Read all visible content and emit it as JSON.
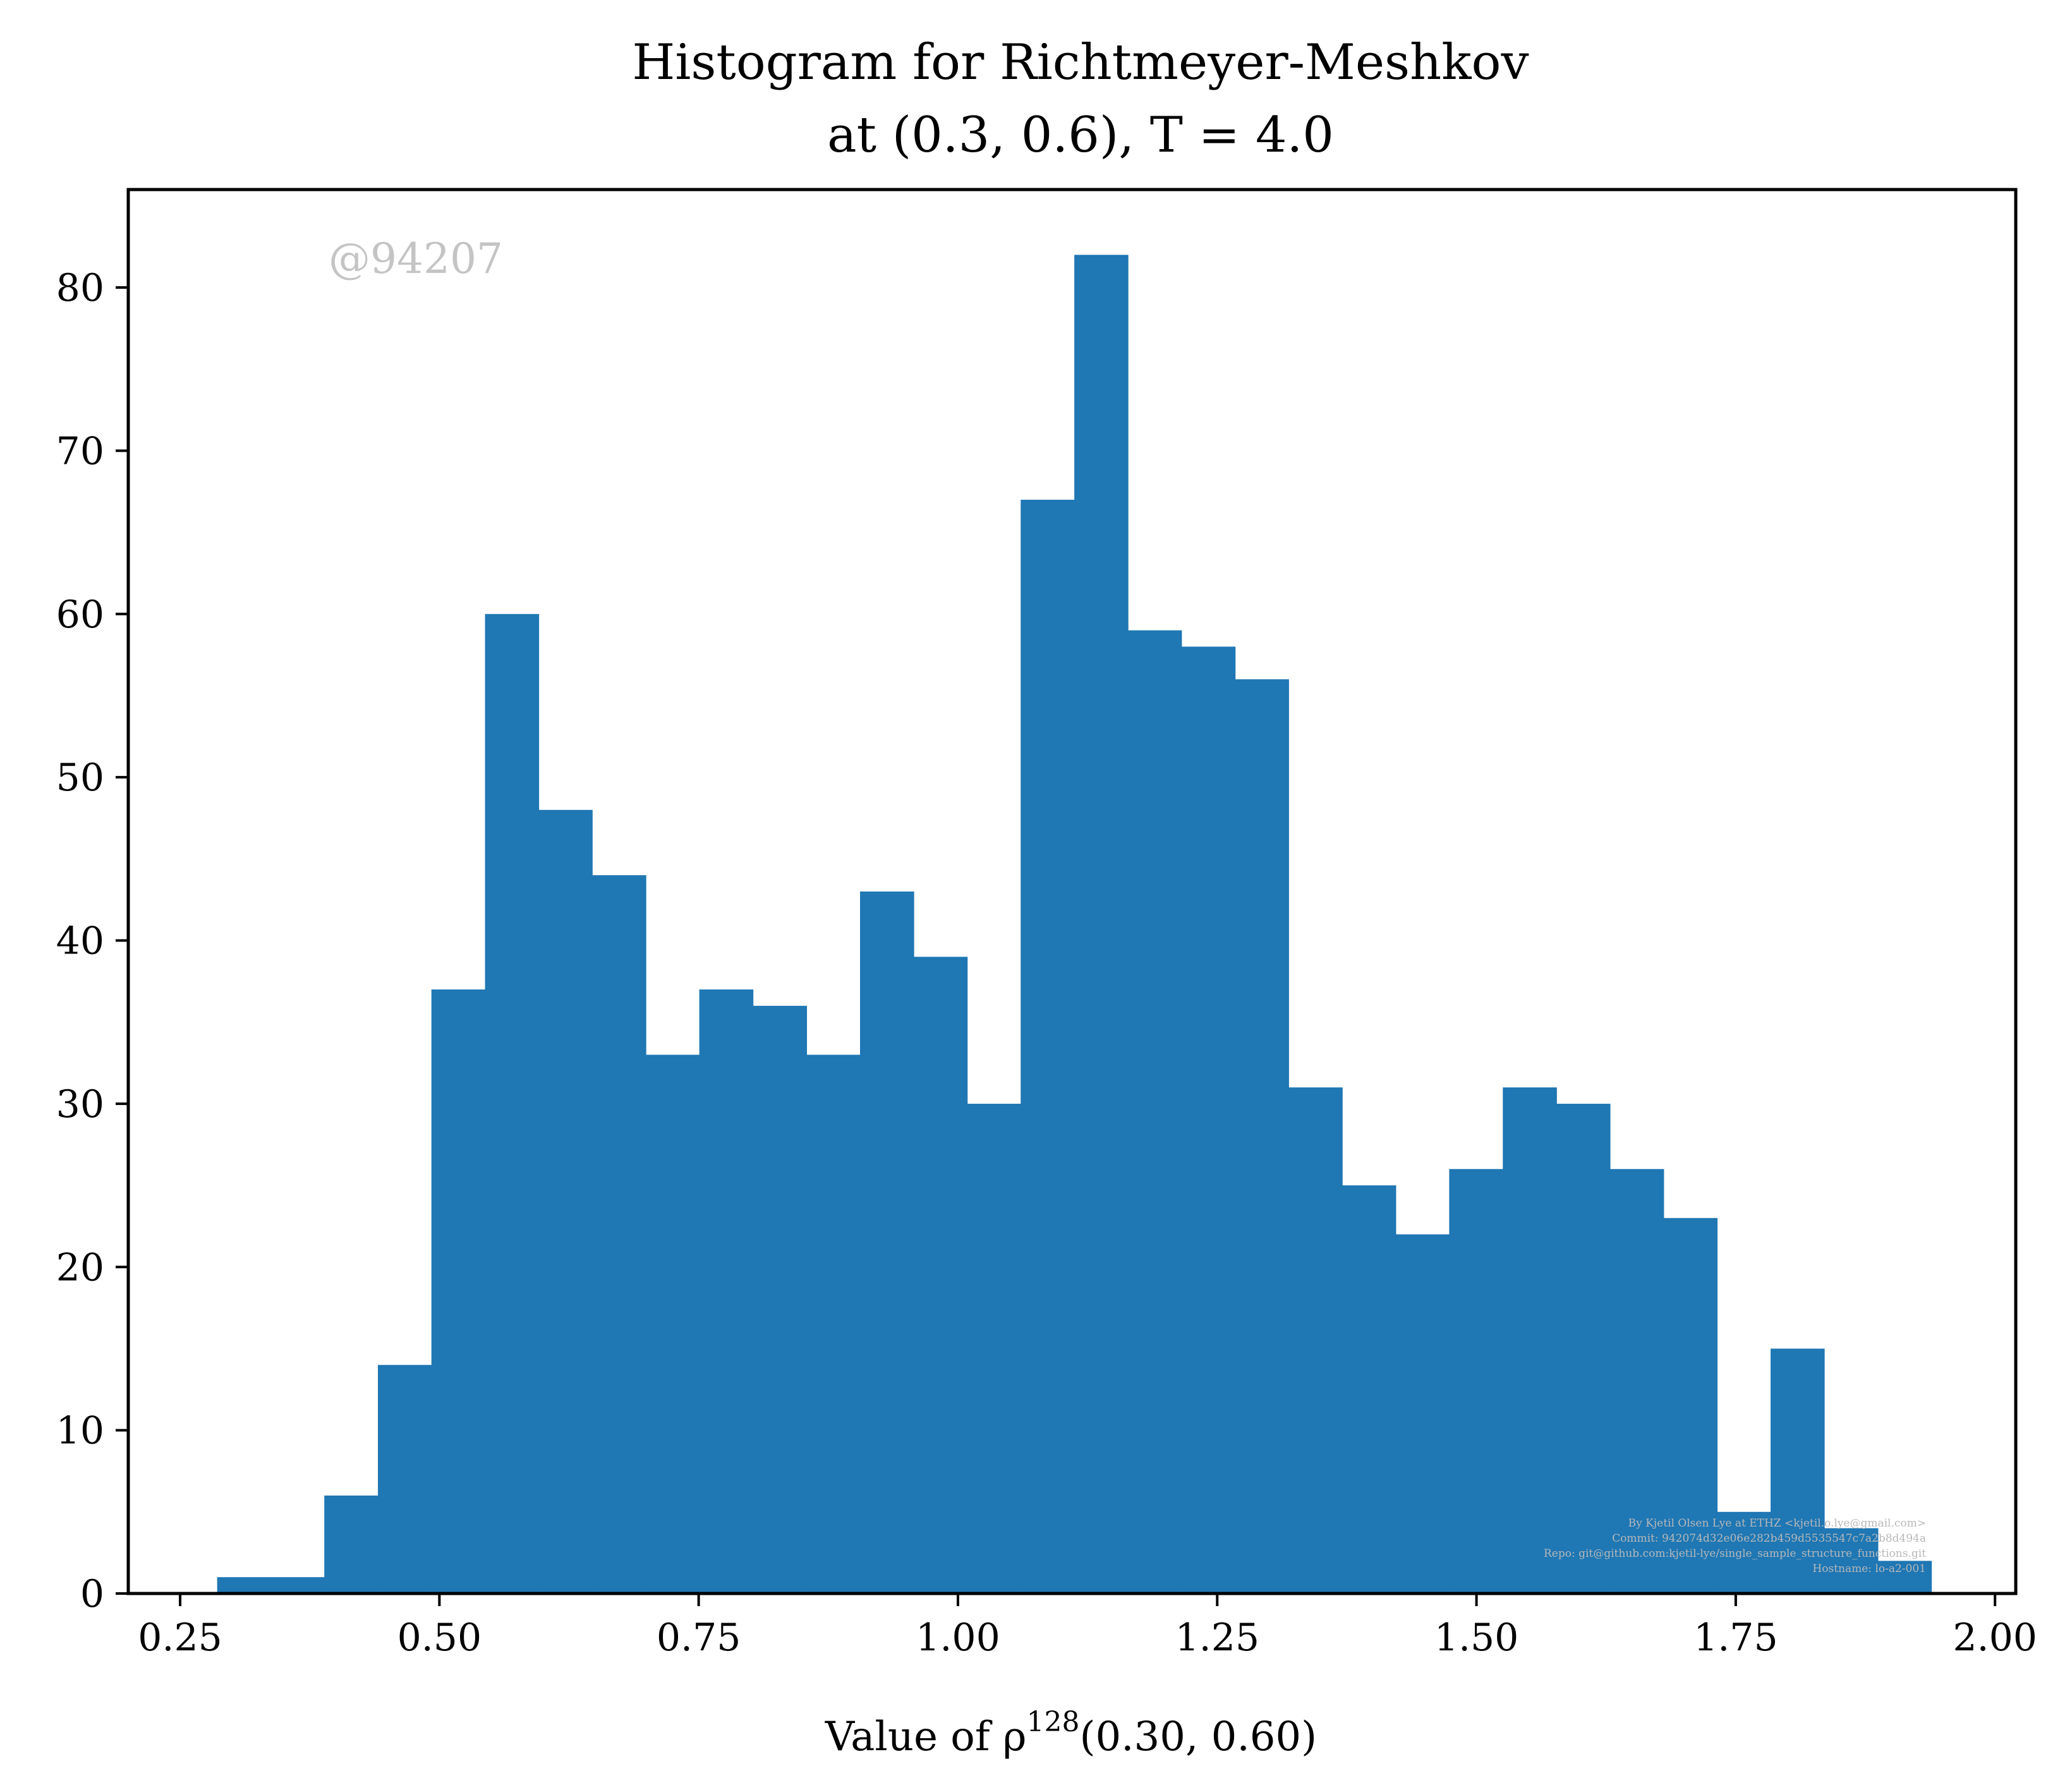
{
  "chart_data": {
    "type": "bar",
    "title_line1": "Histogram for Richtmeyer-Meshkov",
    "title_line2": "at (0.3, 0.6), T = 4.0",
    "xlabel_prefix": "Value of ρ",
    "xlabel_sup": "128",
    "xlabel_suffix": "(0.30, 0.60)",
    "ylabel": "",
    "xlim": [
      0.2,
      2.02
    ],
    "ylim": [
      0,
      86
    ],
    "xticks": [
      "0.25",
      "0.50",
      "0.75",
      "1.00",
      "1.25",
      "1.50",
      "1.75",
      "2.00"
    ],
    "yticks": [
      "0",
      "10",
      "20",
      "30",
      "40",
      "50",
      "60",
      "70",
      "80"
    ],
    "bin_start": 0.2857,
    "bin_width": 0.05165,
    "bins": [
      0.2857,
      0.3374,
      0.389,
      0.4407,
      0.4923,
      0.544,
      0.5956,
      0.6473,
      0.699,
      0.7506,
      0.8023,
      0.8539,
      0.9056,
      0.9572,
      1.0089,
      1.0605,
      1.1122,
      1.1638,
      1.2155,
      1.2671,
      1.3188,
      1.3704,
      1.4221,
      1.4737,
      1.5254,
      1.577,
      1.6287,
      1.6803,
      1.732,
      1.7836,
      1.8353,
      1.8869
    ],
    "values": [
      1,
      1,
      6,
      14,
      37,
      60,
      48,
      44,
      33,
      37,
      36,
      33,
      43,
      39,
      30,
      67,
      82,
      59,
      58,
      56,
      31,
      25,
      22,
      26,
      31,
      30,
      26,
      23,
      5,
      15,
      4,
      2
    ],
    "bar_color": "#1f77b4",
    "grid": false,
    "watermark": "@94207",
    "footer_lines": [
      "By Kjetil Olsen Lye at ETHZ <kjetil.o.lye@gmail.com>",
      "Commit: 942074d32e06e282b459d5535547c7a2b8d494a",
      "Repo: git@github.com:kjetil-lye/single_sample_structure_functions.git",
      "Hostname: lo-a2-001"
    ]
  }
}
